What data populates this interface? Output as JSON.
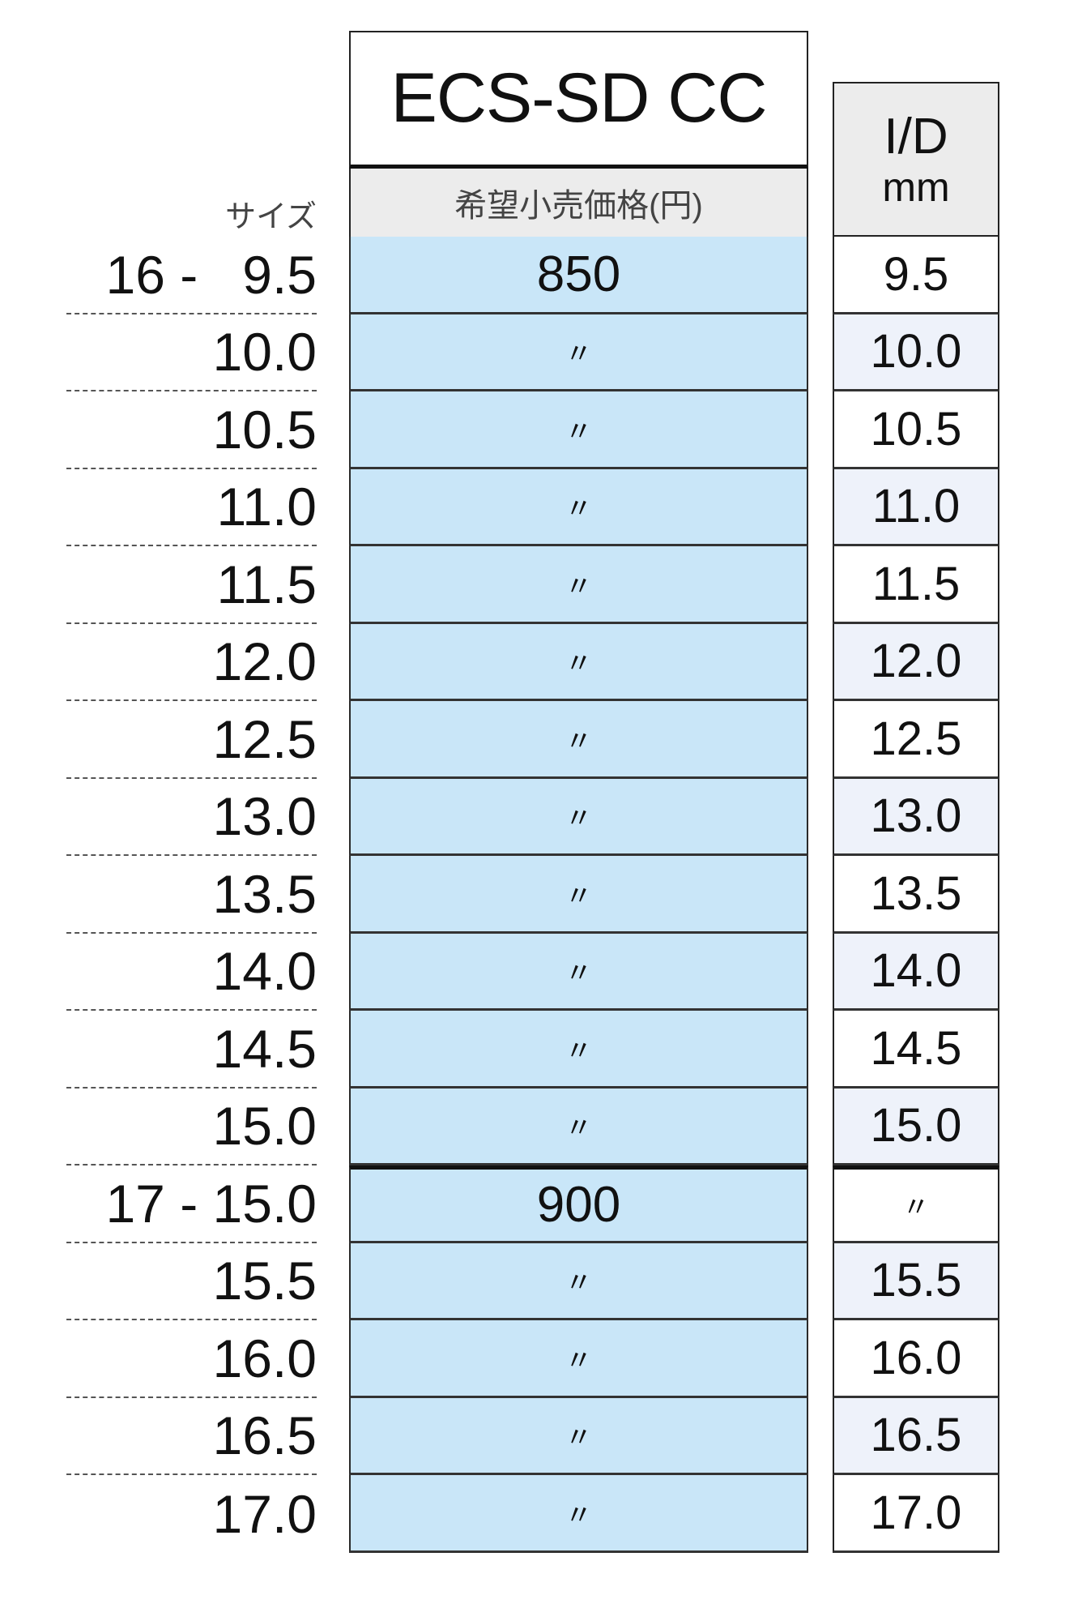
{
  "header": {
    "title": "ECS-SD CC",
    "price_header": "希望小売価格(円)",
    "size_header": "サイズ",
    "id_header": "I/D",
    "id_unit": "mm"
  },
  "rows": [
    {
      "size": "16 -   9.5",
      "price": "850",
      "id": "9.5"
    },
    {
      "size": "10.0",
      "price": "〃",
      "id": "10.0"
    },
    {
      "size": "10.5",
      "price": "〃",
      "id": "10.5"
    },
    {
      "size": "11.0",
      "price": "〃",
      "id": "11.0"
    },
    {
      "size": "11.5",
      "price": "〃",
      "id": "11.5"
    },
    {
      "size": "12.0",
      "price": "〃",
      "id": "12.0"
    },
    {
      "size": "12.5",
      "price": "〃",
      "id": "12.5"
    },
    {
      "size": "13.0",
      "price": "〃",
      "id": "13.0"
    },
    {
      "size": "13.5",
      "price": "〃",
      "id": "13.5"
    },
    {
      "size": "14.0",
      "price": "〃",
      "id": "14.0"
    },
    {
      "size": "14.5",
      "price": "〃",
      "id": "14.5"
    },
    {
      "size": "15.0",
      "price": "〃",
      "id": "15.0"
    },
    {
      "size": "17 - 15.0",
      "price": "900",
      "id": "〃"
    },
    {
      "size": "15.5",
      "price": "〃",
      "id": "15.5"
    },
    {
      "size": "16.0",
      "price": "〃",
      "id": "16.0"
    },
    {
      "size": "16.5",
      "price": "〃",
      "id": "16.5"
    },
    {
      "size": "17.0",
      "price": "〃",
      "id": "17.0"
    }
  ],
  "colors": {
    "price_bg": "#c9e6f8",
    "header_bg": "#ececec",
    "id_alt_bg": "#eef2fa"
  }
}
